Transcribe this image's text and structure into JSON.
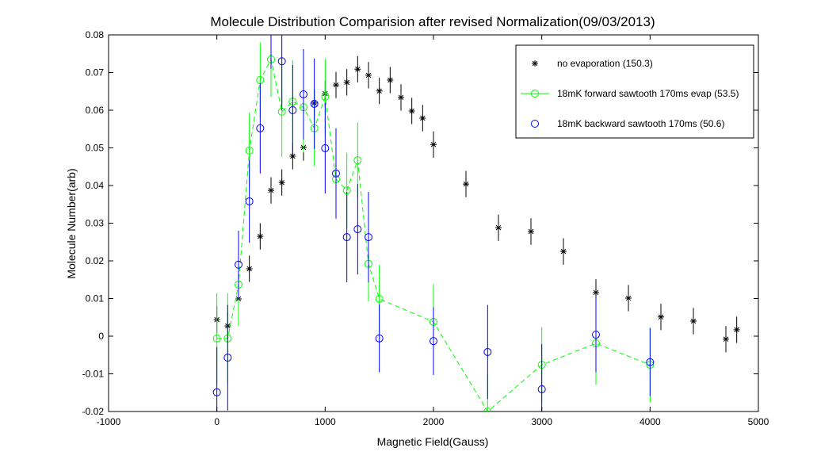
{
  "chart_data": {
    "type": "errorbar",
    "title": "Molecule Distribution Comparision after revised Normalization(09/03/2013)",
    "x_label": "Magnetic Field(Gauss)",
    "y_label": "Molecule Number(arb)",
    "xlim": [
      -1000,
      5000
    ],
    "xticks": [
      -1000,
      0,
      1000,
      2000,
      3000,
      4000,
      5000
    ],
    "ylim": [
      -0.02,
      0.08
    ],
    "yticks": [
      -0.02,
      -0.01,
      0,
      0.01,
      0.02,
      0.03,
      0.04,
      0.05,
      0.06,
      0.07,
      0.08
    ],
    "legend": "upper right",
    "series": [
      {
        "name": "no evaporation (150.3)",
        "color": "#000000",
        "marker": "asterisk",
        "line": false,
        "x": [
          0,
          100,
          200,
          300,
          400,
          500,
          600,
          700,
          800,
          900,
          1000,
          1100,
          1200,
          1300,
          1400,
          1500,
          1600,
          1700,
          1800,
          1900,
          2000,
          2300,
          2600,
          2900,
          3200,
          3500,
          3800,
          4100,
          4400,
          4700,
          4800
        ],
        "values": [
          0.0044,
          0.0027,
          0.0099,
          0.0179,
          0.0265,
          0.0387,
          0.0408,
          0.0478,
          0.0501,
          0.0619,
          0.0644,
          0.0667,
          0.0674,
          0.0709,
          0.0693,
          0.0651,
          0.068,
          0.0634,
          0.0598,
          0.0579,
          0.0509,
          0.0404,
          0.0288,
          0.0278,
          0.0225,
          0.0116,
          0.0101,
          0.0051,
          0.004,
          -0.0008,
          0.0017
        ],
        "errors": [
          0.0035,
          0.0035,
          0.0035,
          0.0035,
          0.0035,
          0.0035,
          0.0035,
          0.0035,
          0.0035,
          0.0035,
          0.0035,
          0.0035,
          0.0035,
          0.0035,
          0.0035,
          0.0035,
          0.0035,
          0.0035,
          0.0035,
          0.0035,
          0.0035,
          0.0035,
          0.0035,
          0.0035,
          0.0035,
          0.0035,
          0.0035,
          0.0035,
          0.0035,
          0.0035,
          0.0035
        ]
      },
      {
        "name": "18mK forward sawtooth 170ms evap (53.5)",
        "color": "#00ff00",
        "marker": "circle",
        "line": true,
        "x": [
          0,
          100,
          200,
          300,
          400,
          500,
          600,
          700,
          800,
          900,
          1000,
          1100,
          1200,
          1300,
          1400,
          1500,
          2000,
          2500,
          3000,
          3500,
          4000
        ],
        "values": [
          -0.0006,
          -0.0006,
          0.0137,
          0.0493,
          0.068,
          0.0735,
          0.0596,
          0.0623,
          0.0608,
          0.0552,
          0.0636,
          0.0417,
          0.0387,
          0.0467,
          0.0192,
          0.0099,
          0.0038,
          -0.02,
          -0.0076,
          -0.0019,
          -0.0076
        ],
        "errors": [
          0.012,
          0.012,
          0.011,
          0.01,
          0.01,
          0.01,
          0.012,
          0.011,
          0.012,
          0.01,
          0.01,
          0.01,
          0.01,
          0.01,
          0.01,
          0.009,
          0.01,
          0.01,
          0.01,
          0.011,
          0.01
        ]
      },
      {
        "name": "18mK backward sawtooth 170ms (50.6)",
        "color": "#0000ff",
        "marker": "circle",
        "line": false,
        "x": [
          0,
          100,
          200,
          300,
          400,
          500,
          600,
          700,
          800,
          900,
          1000,
          1100,
          1200,
          1300,
          1400,
          1500,
          2000,
          2500,
          3000,
          3500,
          4000
        ],
        "values": [
          -0.0149,
          -0.0057,
          0.019,
          0.0358,
          0.0552,
          0.083,
          0.073,
          0.06,
          0.0642,
          0.0617,
          0.0499,
          0.0432,
          0.0263,
          0.0284,
          0.0263,
          -0.0006,
          -0.0013,
          -0.0042,
          -0.0141,
          0.0004,
          -0.0069
        ],
        "errors": [
          0.012,
          0.014,
          0.009,
          0.011,
          0.012,
          0.012,
          0.013,
          0.012,
          0.012,
          0.012,
          0.012,
          0.012,
          0.012,
          0.012,
          0.012,
          0.009,
          0.009,
          0.0125,
          0.012,
          0.01,
          0.009
        ]
      }
    ]
  }
}
